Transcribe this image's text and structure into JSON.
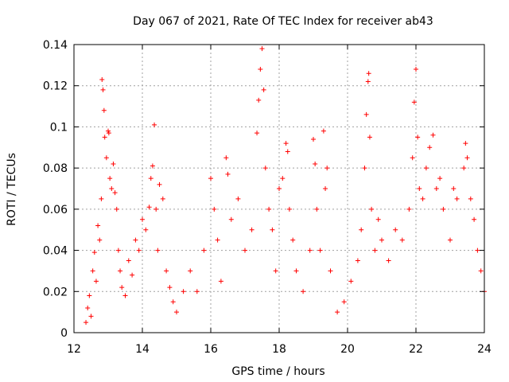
{
  "chart_data": {
    "type": "scatter",
    "title": "Day 067 of 2021, Rate Of TEC Index for receiver ab43",
    "xlabel": "GPS time / hours",
    "ylabel": "ROTI / TECUs",
    "xlim": [
      12,
      24
    ],
    "ylim": [
      0,
      0.14
    ],
    "xticks": [
      12,
      14,
      16,
      18,
      20,
      22,
      24
    ],
    "xtick_labels": [
      "12",
      "14",
      "16",
      "18",
      "20",
      "22",
      "24"
    ],
    "yticks": [
      0,
      0.02,
      0.04,
      0.06,
      0.08,
      0.1,
      0.12,
      0.14
    ],
    "ytick_labels": [
      "0",
      "0.02",
      "0.04",
      "0.06",
      "0.08",
      "0.1",
      "0.12",
      "0.14"
    ],
    "grid": true,
    "marker": "+",
    "color": "#ff0000",
    "series": [
      {
        "name": "ROTI",
        "points": [
          [
            12.35,
            0.005
          ],
          [
            12.4,
            0.012
          ],
          [
            12.45,
            0.018
          ],
          [
            12.5,
            0.008
          ],
          [
            12.55,
            0.03
          ],
          [
            12.6,
            0.039
          ],
          [
            12.65,
            0.025
          ],
          [
            12.7,
            0.052
          ],
          [
            12.75,
            0.045
          ],
          [
            12.8,
            0.065
          ],
          [
            12.82,
            0.123
          ],
          [
            12.85,
            0.118
          ],
          [
            12.88,
            0.108
          ],
          [
            12.9,
            0.095
          ],
          [
            12.95,
            0.085
          ],
          [
            13.0,
            0.098
          ],
          [
            13.02,
            0.097
          ],
          [
            13.05,
            0.075
          ],
          [
            13.1,
            0.07
          ],
          [
            13.15,
            0.082
          ],
          [
            13.2,
            0.068
          ],
          [
            13.25,
            0.06
          ],
          [
            13.3,
            0.04
          ],
          [
            13.35,
            0.03
          ],
          [
            13.4,
            0.022
          ],
          [
            13.5,
            0.018
          ],
          [
            13.6,
            0.035
          ],
          [
            13.7,
            0.028
          ],
          [
            13.8,
            0.045
          ],
          [
            13.9,
            0.04
          ],
          [
            14.0,
            0.055
          ],
          [
            14.1,
            0.05
          ],
          [
            14.2,
            0.061
          ],
          [
            14.25,
            0.075
          ],
          [
            14.3,
            0.081
          ],
          [
            14.35,
            0.101
          ],
          [
            14.4,
            0.06
          ],
          [
            14.45,
            0.04
          ],
          [
            14.5,
            0.072
          ],
          [
            14.6,
            0.065
          ],
          [
            14.7,
            0.03
          ],
          [
            14.8,
            0.022
          ],
          [
            14.9,
            0.015
          ],
          [
            15.0,
            0.01
          ],
          [
            15.2,
            0.02
          ],
          [
            15.4,
            0.03
          ],
          [
            15.6,
            0.02
          ],
          [
            15.8,
            0.04
          ],
          [
            16.0,
            0.075
          ],
          [
            16.1,
            0.06
          ],
          [
            16.2,
            0.045
          ],
          [
            16.3,
            0.025
          ],
          [
            16.45,
            0.085
          ],
          [
            16.5,
            0.077
          ],
          [
            16.6,
            0.055
          ],
          [
            16.8,
            0.065
          ],
          [
            17.0,
            0.04
          ],
          [
            17.2,
            0.05
          ],
          [
            17.35,
            0.097
          ],
          [
            17.4,
            0.113
          ],
          [
            17.45,
            0.128
          ],
          [
            17.5,
            0.138
          ],
          [
            17.55,
            0.118
          ],
          [
            17.6,
            0.08
          ],
          [
            17.7,
            0.06
          ],
          [
            17.8,
            0.05
          ],
          [
            17.9,
            0.03
          ],
          [
            18.0,
            0.07
          ],
          [
            18.1,
            0.075
          ],
          [
            18.2,
            0.092
          ],
          [
            18.25,
            0.088
          ],
          [
            18.3,
            0.06
          ],
          [
            18.4,
            0.045
          ],
          [
            18.5,
            0.03
          ],
          [
            18.7,
            0.02
          ],
          [
            18.9,
            0.04
          ],
          [
            19.0,
            0.094
          ],
          [
            19.05,
            0.082
          ],
          [
            19.1,
            0.06
          ],
          [
            19.2,
            0.04
          ],
          [
            19.3,
            0.098
          ],
          [
            19.35,
            0.07
          ],
          [
            19.4,
            0.08
          ],
          [
            19.5,
            0.03
          ],
          [
            19.7,
            0.01
          ],
          [
            19.9,
            0.015
          ],
          [
            20.1,
            0.025
          ],
          [
            20.3,
            0.035
          ],
          [
            20.4,
            0.05
          ],
          [
            20.5,
            0.08
          ],
          [
            20.55,
            0.106
          ],
          [
            20.6,
            0.122
          ],
          [
            20.62,
            0.126
          ],
          [
            20.65,
            0.095
          ],
          [
            20.7,
            0.06
          ],
          [
            20.8,
            0.04
          ],
          [
            20.9,
            0.055
          ],
          [
            21.0,
            0.045
          ],
          [
            21.2,
            0.035
          ],
          [
            21.4,
            0.05
          ],
          [
            21.6,
            0.045
          ],
          [
            21.8,
            0.06
          ],
          [
            21.9,
            0.085
          ],
          [
            21.95,
            0.112
          ],
          [
            22.0,
            0.128
          ],
          [
            22.05,
            0.095
          ],
          [
            22.1,
            0.07
          ],
          [
            22.2,
            0.065
          ],
          [
            22.3,
            0.08
          ],
          [
            22.4,
            0.09
          ],
          [
            22.5,
            0.096
          ],
          [
            22.6,
            0.07
          ],
          [
            22.7,
            0.075
          ],
          [
            22.8,
            0.06
          ],
          [
            23.0,
            0.045
          ],
          [
            23.1,
            0.07
          ],
          [
            23.2,
            0.065
          ],
          [
            23.4,
            0.08
          ],
          [
            23.45,
            0.092
          ],
          [
            23.5,
            0.085
          ],
          [
            23.6,
            0.065
          ],
          [
            23.7,
            0.055
          ],
          [
            23.8,
            0.04
          ],
          [
            23.9,
            0.03
          ],
          [
            24.0,
            0.02
          ]
        ]
      }
    ]
  }
}
